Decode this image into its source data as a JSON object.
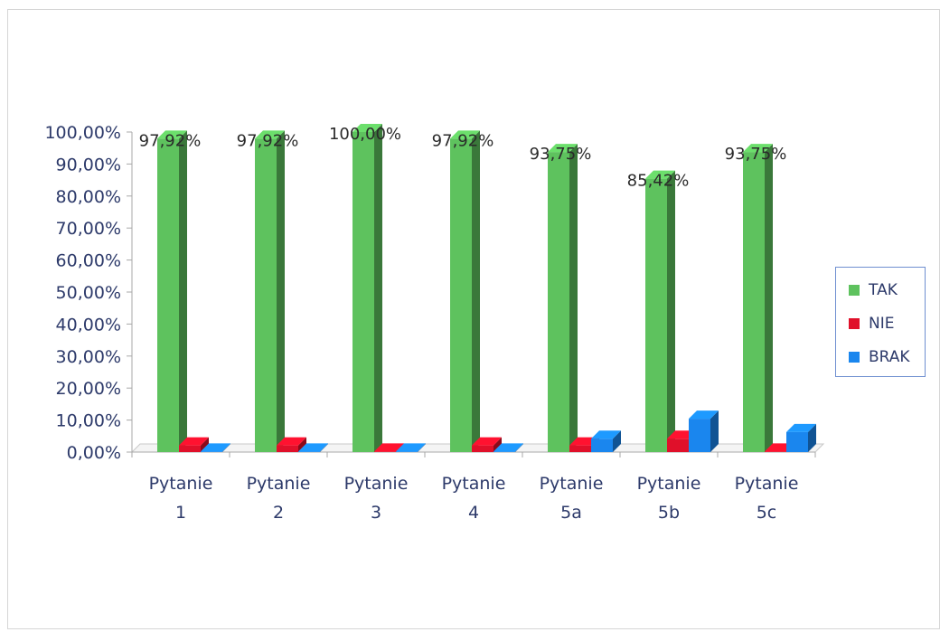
{
  "chart_data": {
    "type": "bar",
    "categories": [
      [
        "Pytanie",
        "1"
      ],
      [
        "Pytanie",
        "2"
      ],
      [
        "Pytanie",
        "3"
      ],
      [
        "Pytanie",
        "4"
      ],
      [
        "Pytanie",
        "5a"
      ],
      [
        "Pytanie",
        "5b"
      ],
      [
        "Pytanie",
        "5c"
      ]
    ],
    "series": [
      {
        "name": "TAK",
        "color": "#5ec25e",
        "values": [
          97.92,
          97.92,
          100.0,
          97.92,
          93.75,
          85.42,
          93.75
        ]
      },
      {
        "name": "NIE",
        "color": "#e0102a",
        "values": [
          2.08,
          2.08,
          0.0,
          2.08,
          2.08,
          4.17,
          0.0
        ]
      },
      {
        "name": "BRAK",
        "color": "#1a86ee",
        "values": [
          0.0,
          0.0,
          0.0,
          0.0,
          4.17,
          10.42,
          6.25
        ]
      }
    ],
    "data_labels": [
      "97,92%",
      "97,92%",
      "100,00%",
      "97,92%",
      "93,75%",
      "85,42%",
      "93,75%"
    ],
    "y_ticks": [
      "0,00%",
      "10,00%",
      "20,00%",
      "30,00%",
      "40,00%",
      "50,00%",
      "60,00%",
      "70,00%",
      "80,00%",
      "90,00%",
      "100,00%"
    ],
    "ylim": [
      0,
      100
    ],
    "legend_position": "right",
    "grid": false,
    "style": "3d-column"
  }
}
